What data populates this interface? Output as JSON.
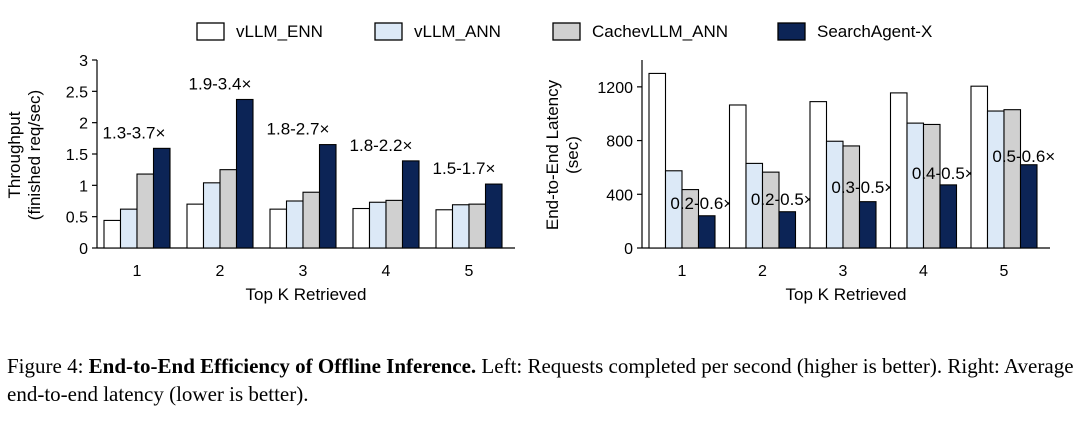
{
  "chart_data": [
    {
      "type": "bar",
      "categories": [
        "1",
        "2",
        "3",
        "4",
        "5"
      ],
      "series": [
        {
          "name": "vLLM_ENN",
          "values": [
            0.44,
            0.7,
            0.62,
            0.63,
            0.61
          ]
        },
        {
          "name": "vLLM_ANN",
          "values": [
            0.62,
            1.04,
            0.75,
            0.73,
            0.69
          ]
        },
        {
          "name": "CachevLLM_ANN",
          "values": [
            1.18,
            1.25,
            0.89,
            0.76,
            0.7
          ]
        },
        {
          "name": "SearchAgent-X",
          "values": [
            1.59,
            2.37,
            1.65,
            1.39,
            1.02
          ]
        }
      ],
      "annotations": [
        "1.3-3.7×",
        "1.9-3.4×",
        "1.8-2.7×",
        "1.8-2.2×",
        "1.5-1.7×"
      ],
      "xlabel": "Top K Retrieved",
      "ylabel": [
        "Throughput",
        "(finished req/sec)"
      ],
      "ylim": [
        0,
        3
      ],
      "yticks": [
        "0",
        "0.5",
        "1",
        "1.5",
        "2",
        "2.5",
        "3"
      ],
      "grid": false
    },
    {
      "type": "bar",
      "categories": [
        "1",
        "2",
        "3",
        "4",
        "5"
      ],
      "series": [
        {
          "name": "vLLM_ENN",
          "values": [
            1300,
            1065,
            1090,
            1155,
            1205
          ]
        },
        {
          "name": "vLLM_ANN",
          "values": [
            575,
            630,
            795,
            930,
            1020
          ]
        },
        {
          "name": "CachevLLM_ANN",
          "values": [
            435,
            565,
            760,
            920,
            1030
          ]
        },
        {
          "name": "SearchAgent-X",
          "values": [
            240,
            270,
            345,
            470,
            620
          ]
        }
      ],
      "annotations": [
        "0.2-0.6×",
        "0.2-0.5×",
        "0.3-0.5×",
        "0.4-0.5×",
        "0.5-0.6×"
      ],
      "xlabel": "Top K Retrieved",
      "ylabel": [
        "End-to-End Latency",
        "(sec)"
      ],
      "ylim": [
        0,
        1400
      ],
      "yticks": [
        "0",
        "400",
        "800",
        "1200"
      ],
      "grid": false
    }
  ],
  "legend": {
    "placement": "top",
    "colors": [
      "#ffffff",
      "#dce9f7",
      "#d0d0d0",
      "#0c2456"
    ]
  },
  "caption": {
    "prefix": "Figure 4: ",
    "bold": "End-to-End Efficiency of Offline Inference.",
    "rest": " Left: Requests completed per second (higher is better). Right: Average end-to-end latency (lower is better)."
  }
}
